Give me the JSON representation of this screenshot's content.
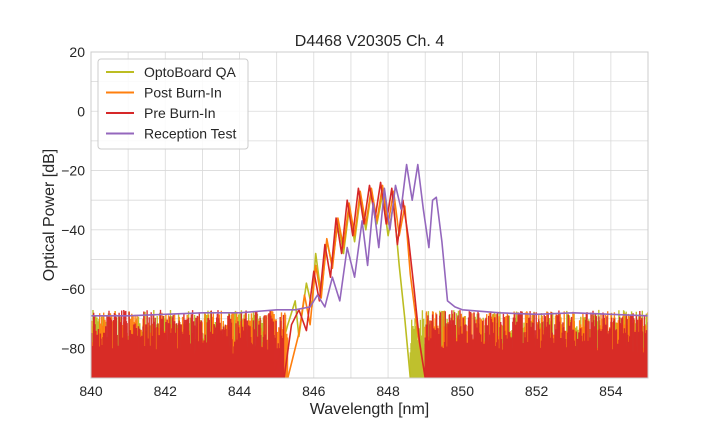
{
  "chart_data": {
    "type": "line",
    "title": "D4468 V20305 Ch. 4",
    "xlabel": "Wavelength [nm]",
    "ylabel": "Optical Power [dB]",
    "xlim": [
      840,
      855
    ],
    "ylim": [
      -90,
      20
    ],
    "x_ticks": [
      "840",
      "842",
      "844",
      "846",
      "848",
      "850",
      "852",
      "854"
    ],
    "y_ticks": [
      "20",
      "0",
      "−20",
      "−40",
      "−60",
      "−80"
    ],
    "grid": true,
    "legend_position": "top-left",
    "noise_floor_db": -90,
    "series": [
      {
        "name": "OptoBoard QA",
        "color": "#bcbd22",
        "noise_range": [
          844.9,
          848.6
        ],
        "points": [
          [
            840.0,
            -90
          ],
          [
            844.9,
            -90
          ],
          [
            845.3,
            -72
          ],
          [
            845.5,
            -64
          ],
          [
            845.6,
            -76
          ],
          [
            845.8,
            -58
          ],
          [
            845.95,
            -66
          ],
          [
            846.05,
            -48
          ],
          [
            846.2,
            -62
          ],
          [
            846.35,
            -44
          ],
          [
            846.5,
            -52
          ],
          [
            846.65,
            -37
          ],
          [
            846.8,
            -48
          ],
          [
            846.95,
            -33
          ],
          [
            847.1,
            -44
          ],
          [
            847.25,
            -29
          ],
          [
            847.4,
            -40
          ],
          [
            847.55,
            -27
          ],
          [
            847.7,
            -38
          ],
          [
            847.85,
            -28
          ],
          [
            848.0,
            -42
          ],
          [
            848.15,
            -31
          ],
          [
            848.3,
            -52
          ],
          [
            848.45,
            -70
          ],
          [
            848.6,
            -90
          ],
          [
            855.0,
            -90
          ]
        ]
      },
      {
        "name": "Post Burn-In",
        "color": "#ff7f0e",
        "noise_range": [
          845.3,
          849.0
        ],
        "points": [
          [
            840.0,
            -90
          ],
          [
            845.3,
            -90
          ],
          [
            845.6,
            -75
          ],
          [
            845.75,
            -62
          ],
          [
            845.9,
            -72
          ],
          [
            846.05,
            -52
          ],
          [
            846.2,
            -63
          ],
          [
            846.35,
            -43
          ],
          [
            846.5,
            -53
          ],
          [
            846.65,
            -36
          ],
          [
            846.8,
            -46
          ],
          [
            846.95,
            -31
          ],
          [
            847.1,
            -42
          ],
          [
            847.25,
            -27
          ],
          [
            847.4,
            -38
          ],
          [
            847.55,
            -26
          ],
          [
            847.7,
            -37
          ],
          [
            847.85,
            -25
          ],
          [
            848.0,
            -38
          ],
          [
            848.15,
            -27
          ],
          [
            848.3,
            -42
          ],
          [
            848.45,
            -32
          ],
          [
            848.6,
            -55
          ],
          [
            848.8,
            -75
          ],
          [
            849.0,
            -90
          ],
          [
            855.0,
            -90
          ]
        ]
      },
      {
        "name": "Pre Burn-In",
        "color": "#d62728",
        "noise_range": [
          845.2,
          849.0
        ],
        "points": [
          [
            840.0,
            -90
          ],
          [
            845.2,
            -90
          ],
          [
            845.4,
            -72
          ],
          [
            845.6,
            -67
          ],
          [
            845.8,
            -74
          ],
          [
            846.0,
            -54
          ],
          [
            846.15,
            -64
          ],
          [
            846.3,
            -45
          ],
          [
            846.45,
            -56
          ],
          [
            846.6,
            -36
          ],
          [
            846.75,
            -48
          ],
          [
            846.9,
            -30
          ],
          [
            847.05,
            -42
          ],
          [
            847.2,
            -26
          ],
          [
            847.35,
            -38
          ],
          [
            847.5,
            -25
          ],
          [
            847.65,
            -36
          ],
          [
            847.8,
            -24
          ],
          [
            847.95,
            -38
          ],
          [
            848.1,
            -26
          ],
          [
            848.25,
            -45
          ],
          [
            848.4,
            -30
          ],
          [
            848.55,
            -43
          ],
          [
            848.7,
            -60
          ],
          [
            848.85,
            -78
          ],
          [
            849.0,
            -90
          ],
          [
            855.0,
            -90
          ]
        ]
      },
      {
        "name": "Reception Test",
        "color": "#9467bd",
        "noise_range": null,
        "points": [
          [
            840.0,
            -69
          ],
          [
            841.0,
            -69
          ],
          [
            842.0,
            -68.5
          ],
          [
            843.0,
            -68
          ],
          [
            844.0,
            -68
          ],
          [
            845.0,
            -67
          ],
          [
            845.5,
            -67
          ],
          [
            845.9,
            -66
          ],
          [
            846.1,
            -62
          ],
          [
            846.3,
            -66
          ],
          [
            846.5,
            -56
          ],
          [
            846.7,
            -64
          ],
          [
            846.9,
            -46
          ],
          [
            847.1,
            -56
          ],
          [
            847.3,
            -37
          ],
          [
            847.45,
            -52
          ],
          [
            847.6,
            -31
          ],
          [
            847.75,
            -46
          ],
          [
            847.9,
            -26
          ],
          [
            848.05,
            -40
          ],
          [
            848.2,
            -25
          ],
          [
            848.35,
            -33
          ],
          [
            848.5,
            -18
          ],
          [
            848.65,
            -30
          ],
          [
            848.8,
            -18
          ],
          [
            848.95,
            -33
          ],
          [
            849.1,
            -46
          ],
          [
            849.2,
            -30
          ],
          [
            849.3,
            -29
          ],
          [
            849.45,
            -44
          ],
          [
            849.6,
            -64
          ],
          [
            849.8,
            -66
          ],
          [
            850.0,
            -67
          ],
          [
            851.0,
            -68
          ],
          [
            852.0,
            -68.5
          ],
          [
            853.0,
            -68
          ],
          [
            854.0,
            -68.5
          ],
          [
            855.0,
            -69
          ]
        ]
      }
    ]
  }
}
